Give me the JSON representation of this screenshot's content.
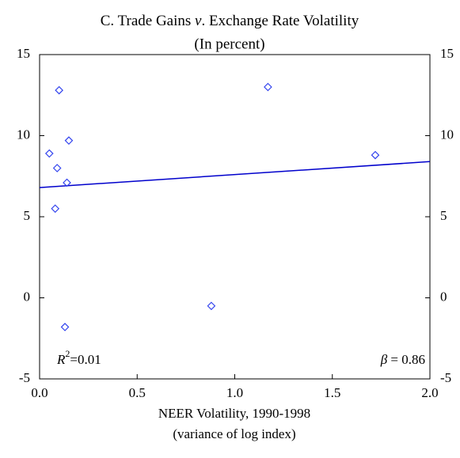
{
  "chart_data": {
    "type": "scatter",
    "title_prefix": "C.  Trade Gains",
    "title_italic": "v",
    "title_suffix": ". Exchange Rate Volatility",
    "subtitle": "(In percent)",
    "x_label": "NEER Volatility, 1990-1998",
    "x_label_note": "(variance of log index)",
    "r2_symbol": "R",
    "r2_sup": "2",
    "r2_value": "=0.01",
    "beta_symbol": "β",
    "beta_value": "= 0.86",
    "points": {
      "color": "#3344ee",
      "x": [
        0.05,
        0.1,
        0.15,
        0.09,
        0.14,
        0.08,
        0.13,
        0.88,
        1.17,
        1.72
      ],
      "y": [
        8.9,
        12.8,
        9.7,
        8.0,
        7.1,
        5.5,
        -1.8,
        -0.5,
        13.0,
        8.8
      ]
    },
    "fit": {
      "color": "#0000cc",
      "x": [
        0,
        2
      ],
      "y": [
        6.8,
        8.4
      ]
    },
    "xlim": [
      0,
      2
    ],
    "xticks": [
      {
        "value": 0,
        "label": "0.0"
      },
      {
        "value": 0.5,
        "label": "0.5"
      },
      {
        "value": 1,
        "label": "1.0"
      },
      {
        "value": 1.5,
        "label": "1.5"
      },
      {
        "value": 2,
        "label": "2.0"
      }
    ],
    "ylim": [
      -5,
      15
    ],
    "yticks": [
      -5,
      0,
      5,
      10,
      15
    ],
    "y2lim": [
      -5,
      15
    ],
    "y2ticks": [
      -5,
      0,
      5,
      10,
      15
    ],
    "grid": false
  }
}
